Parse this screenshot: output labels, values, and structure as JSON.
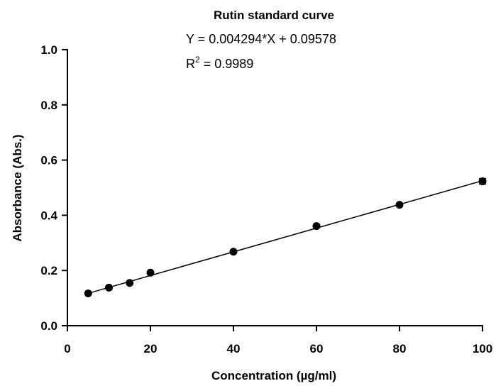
{
  "chart_data": {
    "type": "scatter",
    "title": "Rutin standard curve",
    "annotations": {
      "equation": "Y = 0.004294*X + 0.09578",
      "r2_prefix": "R",
      "r2_exp": "2",
      "r2_value": " = 0.9989"
    },
    "xlabel": "Concentration (µg/ml)",
    "ylabel": "Absorbance (Abs.)",
    "xlim": [
      0,
      100
    ],
    "ylim": [
      0,
      1.0
    ],
    "x_ticks": [
      0,
      20,
      40,
      60,
      80,
      100
    ],
    "y_ticks": [
      0.0,
      0.2,
      0.4,
      0.6,
      0.8,
      1.0
    ],
    "x_tick_labels": [
      "0",
      "20",
      "40",
      "60",
      "80",
      "100"
    ],
    "y_tick_labels": [
      "0.0",
      "0.2",
      "0.4",
      "0.6",
      "0.8",
      "1.0"
    ],
    "points": [
      {
        "x": 5,
        "y": 0.117
      },
      {
        "x": 10,
        "y": 0.138
      },
      {
        "x": 15,
        "y": 0.155
      },
      {
        "x": 20,
        "y": 0.192
      },
      {
        "x": 40,
        "y": 0.268
      },
      {
        "x": 60,
        "y": 0.361
      },
      {
        "x": 80,
        "y": 0.438
      },
      {
        "x": 100,
        "y": 0.523,
        "err": 0.01
      }
    ],
    "fit": {
      "slope": 0.004294,
      "intercept": 0.09578,
      "x_range": [
        5,
        100
      ]
    },
    "grid": false,
    "legend": "none"
  }
}
